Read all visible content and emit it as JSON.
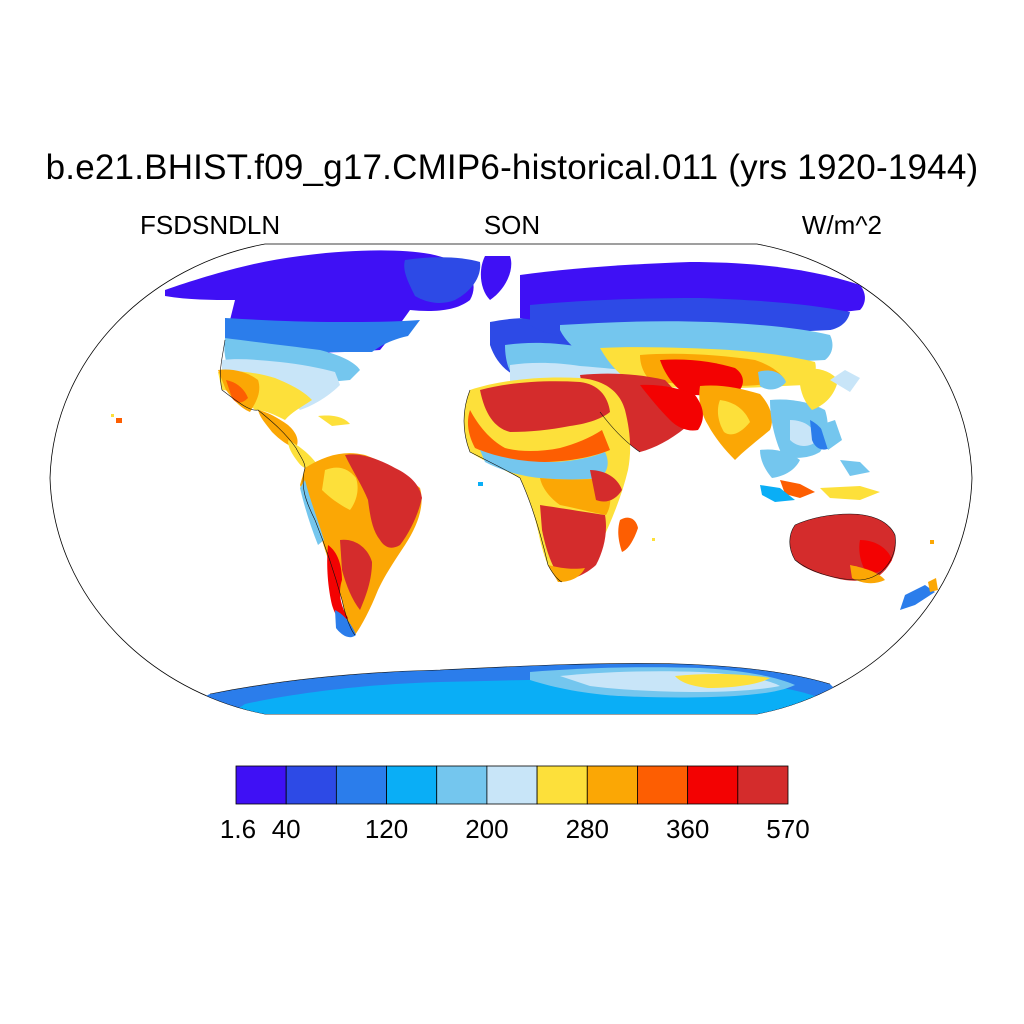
{
  "title": "b.e21.BHIST.f09_g17.CMIP6-historical.011 (yrs 1920-1944)",
  "subtitle_left": "FSDSNDLN",
  "subtitle_center": "SON",
  "subtitle_right": "W/m^2",
  "map": {
    "projection": "Robinson",
    "variable": "FSDSNDLN",
    "units": "W/m^2",
    "ocean_color": "#ffffff",
    "coastlines": true
  },
  "colorbar": {
    "labels": [
      "1.6",
      "40",
      "120",
      "200",
      "280",
      "360",
      "570"
    ],
    "colors": [
      "#3f10f5",
      "#2d4ae6",
      "#2b7deb",
      "#0aaef6",
      "#74c6ee",
      "#c8e5f8",
      "#fde03a",
      "#fba705",
      "#fd5e02",
      "#f30202",
      "#d42c2c"
    ]
  }
}
